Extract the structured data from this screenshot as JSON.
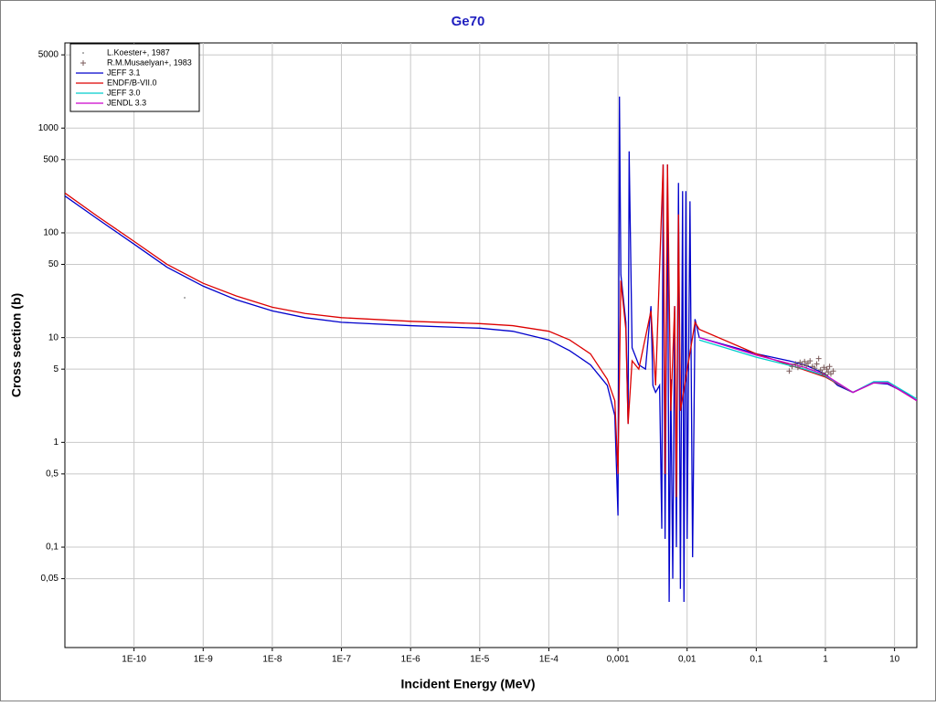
{
  "chart_data": {
    "type": "line",
    "title": "Ge70",
    "xlabel": "Incident Energy (MeV)",
    "ylabel": "Cross section (b)",
    "xscale": "log",
    "yscale": "log",
    "grid": true,
    "legend": "upper left",
    "xlim": [
      1e-11,
      21
    ],
    "ylim": [
      0.011,
      6500
    ],
    "xticks": [
      {
        "value": 1e-10,
        "label": "1E-10"
      },
      {
        "value": 1e-09,
        "label": "1E-9"
      },
      {
        "value": 1e-08,
        "label": "1E-8"
      },
      {
        "value": 1e-07,
        "label": "1E-7"
      },
      {
        "value": 1e-06,
        "label": "1E-6"
      },
      {
        "value": 1e-05,
        "label": "1E-5"
      },
      {
        "value": 0.0001,
        "label": "1E-4"
      },
      {
        "value": 0.001,
        "label": "0,001"
      },
      {
        "value": 0.01,
        "label": "0,01"
      },
      {
        "value": 0.1,
        "label": "0,1"
      },
      1,
      10
    ],
    "yticks": [
      {
        "value": 0.05,
        "label": "0,05"
      },
      {
        "value": 0.1,
        "label": "0,1"
      },
      {
        "value": 0.5,
        "label": "0,5"
      },
      1,
      5,
      10,
      50,
      100,
      500,
      1000,
      5000
    ],
    "series": [
      {
        "name": "L.Koester+, 1987",
        "kind": "scatter",
        "marker": "dot",
        "color": "#999999",
        "x": [
          5.4e-10
        ],
        "values": [
          24
        ]
      },
      {
        "name": "R.M.Musaelyan+, 1983",
        "kind": "scatter",
        "marker": "plus",
        "color": "#7a5a5a",
        "x": [
          0.3,
          0.33,
          0.37,
          0.4,
          0.43,
          0.46,
          0.5,
          0.53,
          0.56,
          0.6,
          0.65,
          0.7,
          0.75,
          0.8,
          0.85,
          0.9,
          0.95,
          1.0,
          1.05,
          1.1,
          1.15,
          1.2,
          1.3
        ],
        "values": [
          4.8,
          5.3,
          5.6,
          5.2,
          5.8,
          5.5,
          5.9,
          5.4,
          5.7,
          6.0,
          5.3,
          5.1,
          5.6,
          6.3,
          4.9,
          4.6,
          5.2,
          4.4,
          5.0,
          4.7,
          5.3,
          4.5,
          4.8
        ]
      },
      {
        "name": "JEFF 3.1",
        "kind": "line",
        "color": "#0000cc",
        "x": [
          1e-11,
          3e-11,
          1e-10,
          3e-10,
          1e-09,
          3e-09,
          1e-08,
          3e-08,
          1e-07,
          1e-06,
          1e-05,
          3e-05,
          0.0001,
          0.0002,
          0.0004,
          0.0007,
          0.0009,
          0.001,
          0.00105,
          0.0011,
          0.0013,
          0.0014,
          0.00145,
          0.0016,
          0.002,
          0.0025,
          0.003,
          0.0032,
          0.0035,
          0.004,
          0.0043,
          0.0045,
          0.0048,
          0.0052,
          0.0055,
          0.0058,
          0.0062,
          0.0066,
          0.007,
          0.0075,
          0.008,
          0.0086,
          0.009,
          0.0096,
          0.01,
          0.011,
          0.012,
          0.013,
          0.015,
          0.05,
          0.1,
          0.3,
          0.5,
          1,
          1.5,
          2.5,
          5,
          8,
          14,
          21
        ],
        "values": [
          225,
          135,
          78,
          47,
          31,
          23,
          18,
          15.5,
          14,
          13,
          12.3,
          11.5,
          9.5,
          7.5,
          5.5,
          3.5,
          1.8,
          0.2,
          2000,
          40,
          14,
          1.5,
          600,
          8,
          5.5,
          5,
          20,
          3.5,
          3,
          3.5,
          0.15,
          450,
          0.12,
          450,
          0.03,
          4,
          0.05,
          20,
          0.1,
          300,
          0.04,
          250,
          0.03,
          250,
          0.12,
          200,
          0.08,
          15,
          10,
          8,
          7,
          6,
          5.5,
          4.5,
          3.5,
          3,
          3.7,
          3.6,
          3,
          2.5
        ]
      },
      {
        "name": "ENDF/B-VII.0",
        "kind": "line",
        "color": "#dd0000",
        "x": [
          1e-11,
          3e-11,
          1e-10,
          3e-10,
          1e-09,
          3e-09,
          1e-08,
          3e-08,
          1e-07,
          1e-06,
          1e-05,
          3e-05,
          0.0001,
          0.0002,
          0.0004,
          0.0007,
          0.0009,
          0.001,
          0.0011,
          0.0013,
          0.0014,
          0.0016,
          0.002,
          0.003,
          0.0035,
          0.0045,
          0.0048,
          0.0052,
          0.0058,
          0.0066,
          0.007,
          0.0075,
          0.008,
          0.013,
          0.015,
          0.1,
          0.3,
          1,
          2.5,
          5,
          8,
          21
        ],
        "values": [
          240,
          143,
          83,
          50,
          33,
          25,
          19.5,
          17,
          15.5,
          14.3,
          13.6,
          13,
          11.5,
          9.5,
          7,
          4,
          2.5,
          0.5,
          35,
          12,
          1.5,
          6,
          5,
          18,
          3.5,
          450,
          0.5,
          450,
          2,
          20,
          0.3,
          150,
          2,
          14,
          12,
          7,
          5.5,
          4.2,
          3,
          3.7,
          3.7,
          2.5
        ]
      },
      {
        "name": "JEFF 3.0",
        "kind": "line",
        "color": "#00cccc",
        "x": [
          0.015,
          0.1,
          0.5,
          1,
          2.5,
          5,
          8,
          21
        ],
        "values": [
          9.5,
          6.5,
          5,
          4.3,
          3,
          3.8,
          3.8,
          2.6
        ]
      },
      {
        "name": "JENDL 3.3",
        "kind": "line",
        "color": "#cc00cc",
        "x": [
          0.015,
          0.1,
          0.5,
          1,
          2.5,
          5,
          8,
          21
        ],
        "values": [
          10,
          6.8,
          5.2,
          4.4,
          3,
          3.7,
          3.7,
          2.5
        ]
      }
    ]
  }
}
